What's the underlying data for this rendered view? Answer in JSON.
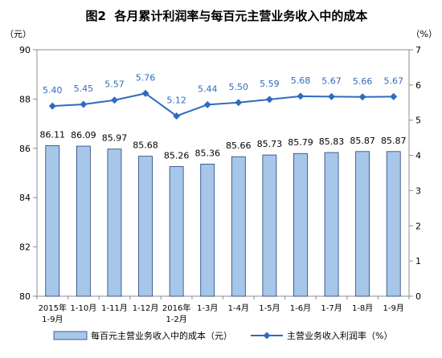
{
  "chart_data": {
    "type": "bar",
    "title": "图2  各月累计利润率与每百元主营业务收入中的成本",
    "categories": [
      "2015年\n1-9月",
      "1-10月",
      "1-11月",
      "1-12月",
      "2016年\n1-2月",
      "1-3月",
      "1-4月",
      "1-5月",
      "1-6月",
      "1-7月",
      "1-8月",
      "1-9月"
    ],
    "y_left": {
      "unit_label": "（元）",
      "ylim": [
        80,
        90
      ],
      "ticks": [
        80,
        82,
        84,
        86,
        88,
        90
      ]
    },
    "y_right": {
      "unit_label": "（%）",
      "ylim": [
        0,
        7
      ],
      "ticks": [
        0,
        1,
        2,
        3,
        4,
        5,
        6,
        7
      ]
    },
    "series": [
      {
        "name": "每百元主营业务收入中的成本（元）",
        "type": "bar",
        "axis": "left",
        "color": "#a7c7ea",
        "edge_color": "#1f3f7a",
        "label_color": "#000000",
        "values": [
          86.11,
          86.09,
          85.97,
          85.68,
          85.26,
          85.36,
          85.66,
          85.73,
          85.79,
          85.83,
          85.87,
          85.87
        ]
      },
      {
        "name": "主营业务收入利润率（%）",
        "type": "line",
        "axis": "right",
        "marker": "diamond",
        "color": "#2e6cbd",
        "label_color": "#2e6cbd",
        "values": [
          5.4,
          5.45,
          5.57,
          5.76,
          5.12,
          5.44,
          5.5,
          5.59,
          5.68,
          5.67,
          5.66,
          5.67
        ]
      }
    ],
    "data_labels": true,
    "grid": false,
    "legend": "bottom"
  }
}
